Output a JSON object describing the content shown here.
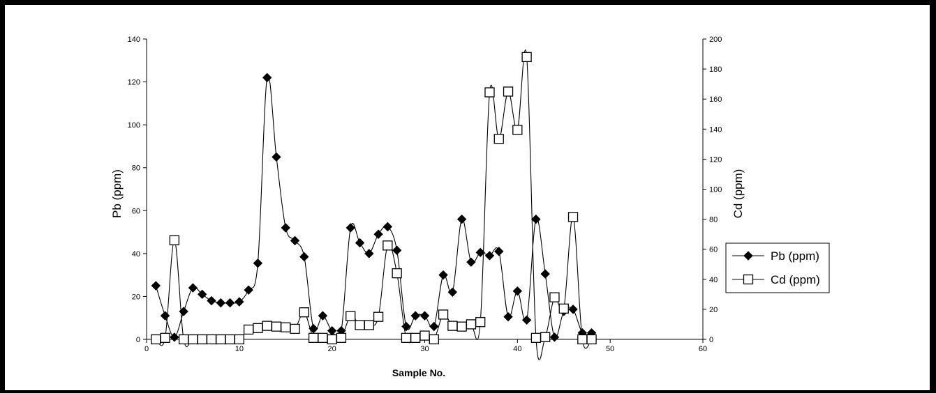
{
  "chart_data": {
    "type": "line",
    "xlabel": "Sample No.",
    "ylabel_left": "Pb (ppm)",
    "ylabel_right": "Cd (ppm)",
    "xlim": [
      0,
      60
    ],
    "ylim_left": [
      0,
      140
    ],
    "ylim_right": [
      0,
      200
    ],
    "x_ticks": [
      0,
      10,
      20,
      30,
      40,
      50,
      60
    ],
    "y_ticks_left": [
      0,
      20,
      40,
      60,
      80,
      100,
      120,
      140
    ],
    "y_ticks_right": [
      0,
      20,
      40,
      60,
      80,
      100,
      120,
      140,
      160,
      180,
      200
    ],
    "legend_position": "right",
    "grid": false,
    "series": [
      {
        "name": "Pb (ppm)",
        "axis": "left",
        "marker": "diamond",
        "color": "#000000",
        "x": [
          1,
          2,
          3,
          4,
          5,
          6,
          7,
          8,
          9,
          10,
          11,
          12,
          13,
          14,
          15,
          16,
          17,
          18,
          19,
          20,
          21,
          22,
          23,
          24,
          25,
          26,
          27,
          28,
          29,
          30,
          31,
          32,
          33,
          34,
          35,
          36,
          37,
          38,
          39,
          40,
          41,
          42,
          43,
          44,
          45,
          46,
          47,
          48
        ],
        "values": [
          25,
          11,
          1,
          13,
          24,
          21,
          18,
          17,
          17,
          17.5,
          23,
          35.5,
          122,
          85,
          52,
          46,
          38.5,
          5,
          11,
          4,
          4,
          52,
          45,
          40,
          49,
          52.5,
          41.5,
          6,
          11,
          11,
          6,
          30,
          22,
          56,
          36,
          40.5,
          39,
          41,
          10.5,
          22.5,
          9,
          56,
          30.5,
          1,
          13,
          14,
          3,
          3
        ]
      },
      {
        "name": "Cd (ppm)",
        "axis": "right",
        "marker": "open-square",
        "color": "#000000",
        "x": [
          1,
          2,
          3,
          4,
          5,
          6,
          7,
          8,
          9,
          10,
          11,
          12,
          13,
          14,
          15,
          16,
          17,
          18,
          19,
          20,
          21,
          22,
          23,
          24,
          25,
          26,
          27,
          28,
          29,
          30,
          31,
          32,
          33,
          34,
          35,
          36,
          37,
          38,
          39,
          40,
          41,
          42,
          43,
          44,
          45,
          46,
          47,
          48
        ],
        "values": [
          0,
          1,
          66,
          0,
          0,
          0,
          0,
          0,
          0,
          0,
          6.5,
          7.5,
          9,
          8.5,
          8,
          7,
          18,
          1,
          1,
          0,
          1,
          15.5,
          9.5,
          9.5,
          15,
          62.5,
          44,
          1,
          1,
          2.5,
          0,
          16.5,
          9,
          8.5,
          10,
          11.5,
          164.5,
          133.5,
          165,
          139.5,
          188,
          1,
          1.5,
          28,
          20.5,
          81.5,
          0,
          0
        ]
      }
    ]
  }
}
